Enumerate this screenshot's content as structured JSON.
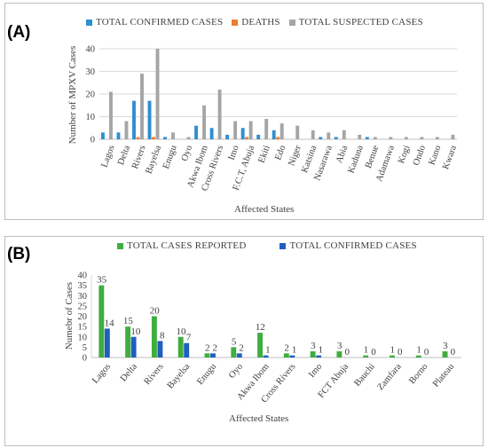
{
  "panels": {
    "a_label": "(A)",
    "b_label": "(B)"
  },
  "chart_data": [
    {
      "type": "bar",
      "panel": "(A)",
      "title": "",
      "xlabel": "Affected States",
      "ylabel": "Number of MPXV Cases",
      "ylim": [
        0,
        40
      ],
      "yticks": [
        0,
        10,
        20,
        30,
        40
      ],
      "grid": true,
      "legend_placement": "top",
      "categories": [
        "Lagos",
        "Delta",
        "Rivers",
        "Bayelsa",
        "Enugu",
        "Oyo",
        "Akwa Ibom",
        "Cross Rivers",
        "Imo",
        "F.C.T, Abuja",
        "Ekiti",
        "Edo",
        "Niger",
        "Katsina",
        "Nasarawa",
        "Abia",
        "Kaduna",
        "Benue",
        "Adamawa",
        "Kogi",
        "Ondo",
        "Kano",
        "Kwara"
      ],
      "series": [
        {
          "name": "TOTAL CONFIRMED CASES",
          "color": "#2e8fd1",
          "values": [
            3,
            3,
            17,
            17,
            1,
            0,
            6,
            5,
            2,
            5,
            2,
            4,
            0,
            0,
            1,
            1,
            0,
            1,
            0,
            0,
            0,
            0,
            0
          ]
        },
        {
          "name": "DEATHS",
          "color": "#ed7d31",
          "values": [
            0,
            0,
            1,
            1,
            0,
            0,
            0,
            0,
            0,
            1,
            0,
            1,
            0,
            0,
            0,
            0,
            0,
            0,
            0,
            0,
            0,
            0,
            0
          ]
        },
        {
          "name": "TOTAL SUSPECTED CASES",
          "color": "#a5a5a5",
          "values": [
            21,
            8,
            29,
            40,
            3,
            1,
            15,
            22,
            8,
            8,
            9,
            7,
            6,
            4,
            3,
            4,
            2,
            1,
            1,
            1,
            1,
            1,
            2
          ]
        }
      ]
    },
    {
      "type": "bar",
      "panel": "(B)",
      "title": "",
      "xlabel": "Affected States",
      "ylabel": "Numebr of Cases",
      "ylim": [
        0,
        40
      ],
      "yticks": [
        0,
        5,
        10,
        15,
        20,
        25,
        30,
        35,
        40
      ],
      "grid": false,
      "legend_placement": "top",
      "data_labels": true,
      "categories": [
        "Lagos",
        "Delta",
        "Rivers",
        "Bayelsa",
        "Enugu",
        "Oyo",
        "Akwa Ibom",
        "Cross Rivers",
        "Imo",
        "FCT Abuja",
        "Bauchi",
        "Zamfara",
        "Borno",
        "Plateau"
      ],
      "series": [
        {
          "name": "TOTAL CASES REPORTED",
          "color": "#3fae3f",
          "values": [
            35,
            15,
            20,
            10,
            2,
            5,
            12,
            2,
            3,
            3,
            1,
            1,
            1,
            3
          ]
        },
        {
          "name": "TOTAL CONFIRMED CASES",
          "color": "#1f5fbf",
          "values": [
            14,
            10,
            8,
            7,
            2,
            2,
            1,
            1,
            1,
            0,
            0,
            0,
            0,
            0
          ]
        }
      ]
    }
  ]
}
